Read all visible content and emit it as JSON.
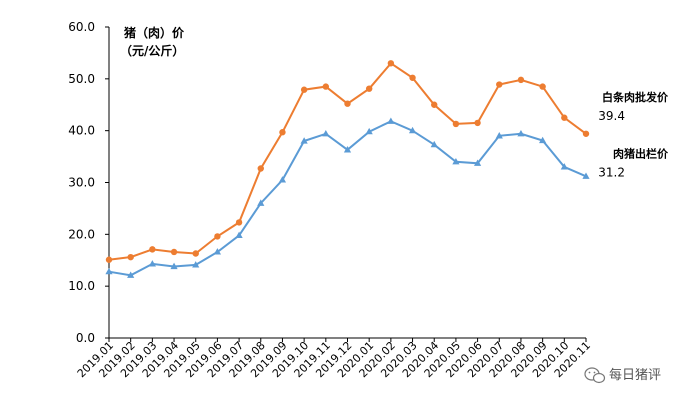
{
  "chart_data": {
    "type": "line",
    "ylabel_line1": "猪（肉）价",
    "ylabel_line2": "（元/公斤）",
    "ylim": [
      0,
      60
    ],
    "yticks": [
      "0.0",
      "10.0",
      "20.0",
      "30.0",
      "40.0",
      "50.0",
      "60.0"
    ],
    "categories": [
      "2019.01",
      "2019.02",
      "2019.03",
      "2019.04",
      "2019.05",
      "2019.06",
      "2019.07",
      "2019.08",
      "2019.09",
      "2019.10",
      "2019.11",
      "2019.12",
      "2020.01",
      "2020.02",
      "2020.03",
      "2020.04",
      "2020.05",
      "2020.06",
      "2020.07",
      "2020.08",
      "2020.09",
      "2020.10",
      "2020.11"
    ],
    "series": [
      {
        "name": "白条肉批发价",
        "end_label": "39.4",
        "color": "#ED7D31",
        "marker": "circle",
        "values": [
          15.1,
          15.6,
          17.1,
          16.6,
          16.3,
          19.6,
          22.3,
          32.7,
          39.7,
          47.9,
          48.5,
          45.2,
          48.1,
          53.0,
          50.2,
          45.0,
          41.3,
          41.5,
          48.9,
          49.8,
          48.5,
          42.5,
          39.4
        ]
      },
      {
        "name": "肉猪出栏价",
        "end_label": "31.2",
        "color": "#5B9BD5",
        "marker": "triangle",
        "values": [
          12.8,
          12.1,
          14.3,
          13.8,
          14.1,
          16.6,
          19.8,
          26.0,
          30.5,
          38.0,
          39.4,
          36.3,
          39.8,
          41.8,
          40.0,
          37.3,
          34.0,
          33.7,
          39.0,
          39.4,
          38.1,
          33.0,
          31.2
        ]
      }
    ],
    "grid": false,
    "legend": "inline-end-labels"
  },
  "watermark": {
    "text": "每日猪评",
    "icon": "wechat-icon"
  }
}
